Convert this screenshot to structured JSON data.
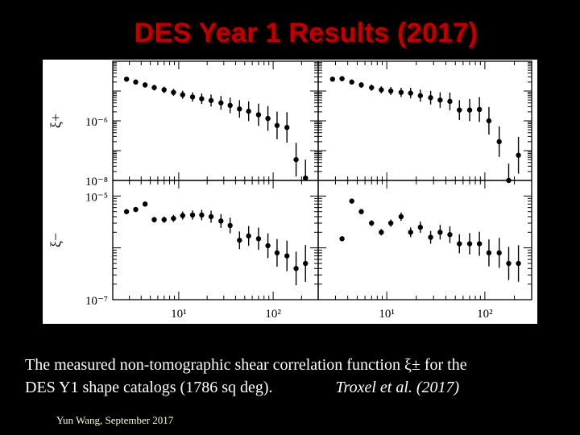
{
  "slide": {
    "title": "DES Year 1 Results (2017)",
    "caption_line1": "The measured non-tomographic shear correlation function ξ± for the",
    "caption_line2": "DES Y1 shape catalogs (1786 sq deg).",
    "citation": "Troxel et al. (2017)",
    "footer": "Yun Wang, September 2017",
    "title_color": "#c00000"
  },
  "chart_data": [
    {
      "type": "scatter",
      "panel": "top-left",
      "ylabel": "ξ+",
      "xlog": true,
      "ylog": true,
      "xlim": [
        2,
        300
      ],
      "ylim": [
        1e-08,
        0.0001
      ],
      "yticks": [
        "10⁻⁶",
        "10⁻⁸"
      ],
      "xticks": [],
      "x": [
        2.8,
        3.5,
        4.4,
        5.5,
        7,
        8.8,
        11,
        14,
        17.5,
        22,
        28,
        35,
        44,
        55,
        70,
        88,
        110,
        140,
        175,
        220
      ],
      "y": [
        2.5e-05,
        2e-05,
        1.6e-05,
        1.3e-05,
        1.1e-05,
        9e-06,
        7.5e-06,
        6.3e-06,
        5.5e-06,
        4.8e-06,
        4e-06,
        3.3e-06,
        2.5e-06,
        2.1e-06,
        1.6e-06,
        1.2e-06,
        7e-07,
        6e-07,
        5e-08,
        1.2e-08
      ]
    },
    {
      "type": "scatter",
      "panel": "top-right",
      "xlog": true,
      "ylog": true,
      "xlim": [
        2,
        300
      ],
      "ylim": [
        1e-08,
        0.0001
      ],
      "yticks": [],
      "xticks": [],
      "x": [
        2.8,
        3.5,
        4.4,
        5.5,
        7,
        8.8,
        11,
        14,
        17.5,
        22,
        28,
        35,
        44,
        55,
        70,
        88,
        110,
        140,
        175,
        220
      ],
      "y": [
        2.5e-05,
        2.6e-05,
        2e-05,
        1.6e-05,
        1.3e-05,
        1.1e-05,
        1e-05,
        9e-06,
        8.5e-06,
        7e-06,
        6e-06,
        5e-06,
        4.5e-06,
        2.3e-06,
        2.3e-06,
        2.4e-06,
        1e-06,
        2e-07,
        1e-08,
        7e-08
      ]
    },
    {
      "type": "scatter",
      "panel": "bottom-left",
      "xlabel": "",
      "ylabel": "ξ−",
      "xlog": true,
      "ylog": true,
      "xlim": [
        2,
        300
      ],
      "ylim": [
        1e-07,
        2e-05
      ],
      "yticks": [
        "10⁻⁵",
        "10⁻⁷"
      ],
      "xticks": [
        "10¹",
        "10²"
      ],
      "x": [
        2.8,
        3.5,
        4.4,
        5.5,
        7,
        8.8,
        11,
        14,
        17.5,
        22,
        28,
        35,
        44,
        55,
        70,
        88,
        110,
        140,
        175,
        220
      ],
      "y": [
        5e-06,
        5.5e-06,
        7e-06,
        3.5e-06,
        3.5e-06,
        3.7e-06,
        4.2e-06,
        4.3e-06,
        4.3e-06,
        4e-06,
        3.3e-06,
        2.7e-06,
        1.4e-06,
        1.7e-06,
        1.5e-06,
        1.1e-06,
        8e-07,
        7e-07,
        4e-07,
        5e-07
      ]
    },
    {
      "type": "scatter",
      "panel": "bottom-right",
      "xlog": true,
      "ylog": true,
      "xlim": [
        2,
        300
      ],
      "ylim": [
        1e-07,
        2e-05
      ],
      "yticks": [],
      "xticks": [
        "10¹",
        "10²"
      ],
      "x": [
        3.5,
        4.4,
        5.5,
        7,
        8.8,
        11,
        14,
        17.5,
        22,
        28,
        35,
        44,
        55,
        70,
        88,
        110,
        140,
        175,
        220
      ],
      "y": [
        1.5e-06,
        8e-06,
        5e-06,
        3e-06,
        2e-06,
        3e-06,
        4e-06,
        2e-06,
        2.5e-06,
        1.6e-06,
        2e-06,
        1.8e-06,
        1.2e-06,
        1.2e-06,
        1.2e-06,
        8e-07,
        8e-07,
        5e-07,
        5e-07
      ]
    }
  ]
}
